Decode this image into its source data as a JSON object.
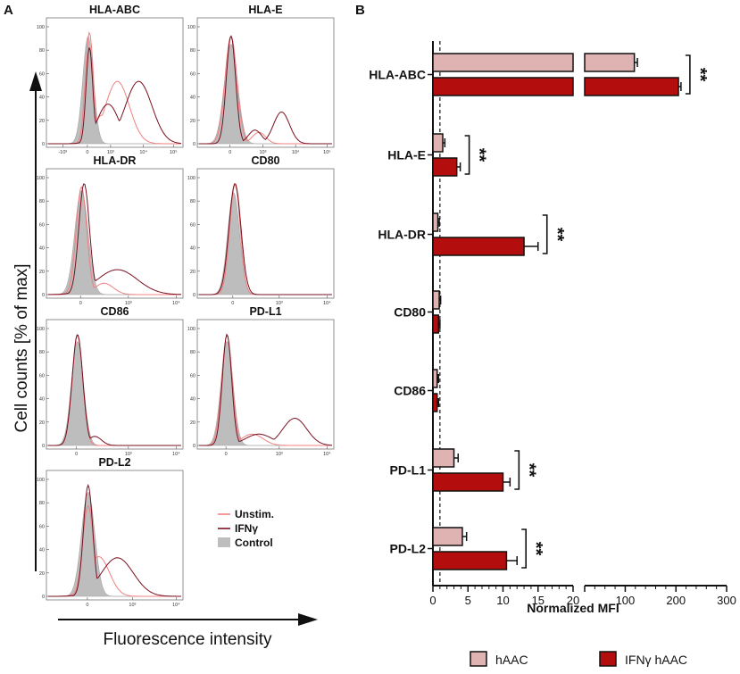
{
  "panel_a": {
    "letter": "A",
    "y_axis_label": "Cell counts [% of max]",
    "x_axis_label": "Fluorescence intensity",
    "panels": [
      {
        "title": "HLA-ABC",
        "ticks": [
          "-10³",
          "0",
          "10³",
          "10⁴",
          "10⁵"
        ]
      },
      {
        "title": "HLA-E",
        "ticks": [
          "0",
          "10³",
          "10⁴",
          "10⁵"
        ]
      },
      {
        "title": "HLA-DR",
        "ticks": [
          "0",
          "10³",
          "10⁴"
        ]
      },
      {
        "title": "CD80",
        "ticks": [
          "0",
          "10³",
          "10⁴"
        ]
      },
      {
        "title": "CD86",
        "ticks": [
          "0",
          "10³",
          "10⁴"
        ]
      },
      {
        "title": "PD-L1",
        "ticks": [
          "0",
          "10³",
          "10⁴"
        ]
      },
      {
        "title": "PD-L2",
        "ticks": [
          "0",
          "10³",
          "10⁴"
        ]
      }
    ],
    "y_tick_labels": [
      "0",
      "20",
      "40",
      "60",
      "80",
      "100"
    ],
    "legend": [
      {
        "label": "Unstim.",
        "color": "#f08080"
      },
      {
        "label": "IFNγ",
        "color": "#7a1020"
      },
      {
        "label": "Control",
        "color": "#bdbdbd"
      }
    ]
  },
  "chart_data": {
    "panel_letter": "B",
    "type": "bar",
    "orientation": "horizontal",
    "xlabel": "Normalized MFI",
    "ylabel": "",
    "axis_break": true,
    "xlim_segment_1": [
      0,
      20
    ],
    "xlim_segment_2": [
      20,
      300
    ],
    "x_ticks_segment_1": [
      "0",
      "5",
      "10",
      "15",
      "20"
    ],
    "x_ticks_segment_2": [
      "100",
      "200",
      "300"
    ],
    "reference_line": 1,
    "categories": [
      "HLA-ABC",
      "HLA-E",
      "HLA-DR",
      "CD80",
      "CD86",
      "PD-L1",
      "PD-L2"
    ],
    "series": [
      {
        "name": "hAAC",
        "color": "#e0b3b3",
        "values": [
          118,
          1.4,
          0.7,
          0.9,
          0.6,
          3.0,
          4.2
        ],
        "errors": [
          6,
          0.3,
          0.2,
          0.2,
          0.2,
          0.6,
          0.6
        ]
      },
      {
        "name": "IFNγ hAAC",
        "color": "#b30d0d",
        "values": [
          205,
          3.4,
          13.0,
          0.8,
          0.6,
          10.0,
          10.5
        ],
        "errors": [
          5,
          0.5,
          2.0,
          0.2,
          0.2,
          1.0,
          1.5
        ]
      }
    ],
    "significance": [
      "**",
      "**",
      "**",
      "",
      "",
      "**",
      "**"
    ]
  }
}
